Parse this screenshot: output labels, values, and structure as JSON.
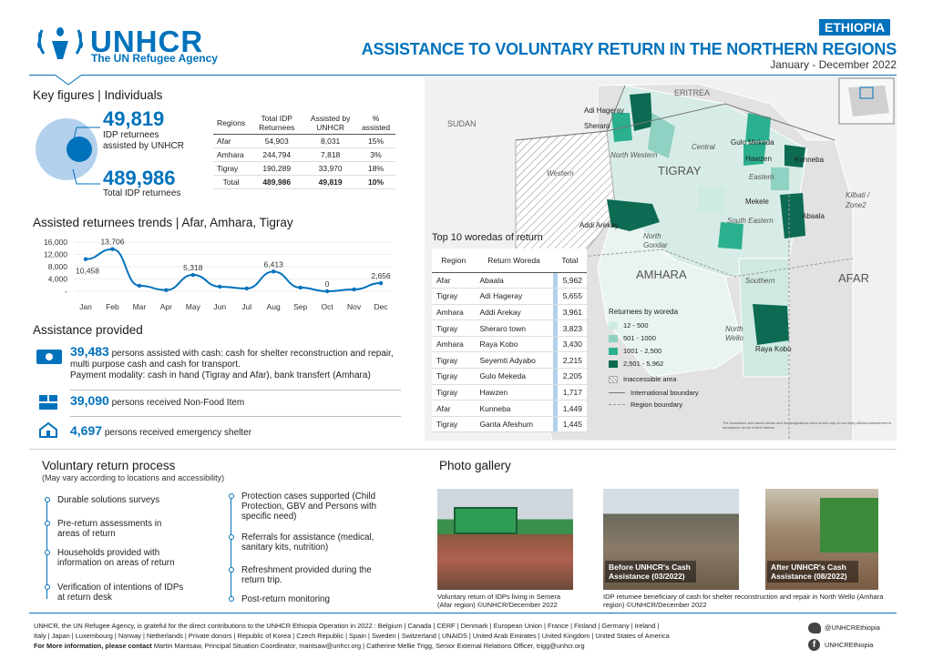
{
  "header": {
    "org_name": "UNHCR",
    "org_sub": "The UN Refugee Agency",
    "country": "ETHIOPIA",
    "title": "ASSISTANCE TO VOLUNTARY RETURN IN THE NORTHERN REGIONS",
    "period": "January - December 2022"
  },
  "key_figures": {
    "title": "Key figures | Individuals",
    "assisted_value": "49,819",
    "assisted_label": "IDP returnees assisted by UNHCR",
    "total_value": "489,986",
    "total_label": "Total IDP returnees",
    "assisted_share": 0.102
  },
  "regions_table": {
    "headers": [
      "Regions",
      "Total IDP Returnees",
      "Assisted by UNHCR",
      "% assisted"
    ],
    "rows": [
      [
        "Afar",
        "54,903",
        "8,031",
        "15%"
      ],
      [
        "Amhara",
        "244,794",
        "7,818",
        "3%"
      ],
      [
        "Tigray",
        "190,289",
        "33,970",
        "18%"
      ]
    ],
    "total": [
      "Total",
      "489,986",
      "49,819",
      "10%"
    ]
  },
  "trend": {
    "title": "Assisted returnees trends | Afar, Amhara, Tigray",
    "y_ticks": [
      "16,000",
      "12,000",
      "8,000",
      "4,000",
      "-"
    ],
    "chart_data": {
      "type": "line",
      "x": [
        "Jan",
        "Feb",
        "Mar",
        "Apr",
        "May",
        "Jun",
        "Jul",
        "Aug",
        "Sep",
        "Oct",
        "Nov",
        "Dec"
      ],
      "values": [
        10458,
        13706,
        1800,
        400,
        5318,
        1500,
        900,
        6413,
        1200,
        0,
        600,
        2656
      ],
      "labels": {
        "0": "10,458",
        "1": "13,706",
        "4": "5,318",
        "7": "6,413",
        "9": "0",
        "11": "2,656"
      },
      "ylim": [
        0,
        16000
      ]
    }
  },
  "assistance": {
    "title": "Assistance provided",
    "items": [
      {
        "value": "39,483",
        "text": "persons assisted with cash: cash for shelter reconstruction and repair, multi purpose cash and cash for transport.",
        "text2": "Payment modality: cash in hand (Tigray and Afar), bank transfert (Amhara)",
        "icon": "cash-icon"
      },
      {
        "value": "39,090",
        "text": "persons received Non-Food Item",
        "icon": "nfi-icon"
      },
      {
        "value": "4,697",
        "text": "persons received emergency shelter",
        "icon": "shelter-icon"
      }
    ]
  },
  "top10": {
    "title": "Top 10 woredas of return",
    "headers": [
      "Region",
      "Return Woreda",
      "Total"
    ],
    "rows": [
      [
        "Afar",
        "Abaala",
        "5,962"
      ],
      [
        "Tigray",
        "Adi Hageray",
        "5,655"
      ],
      [
        "Amhara",
        "Addi Arekay",
        "3,961"
      ],
      [
        "Tigray",
        "Sheraro town",
        "3,823"
      ],
      [
        "Amhara",
        "Raya Kobo",
        "3,430"
      ],
      [
        "Tigray",
        "Seyemti Adyabo",
        "2,215"
      ],
      [
        "Tigray",
        "Gulo Mekeda",
        "2,205"
      ],
      [
        "Tigray",
        "Hawzen",
        "1,717"
      ],
      [
        "Afar",
        "Kunneba",
        "1,449"
      ],
      [
        "Tigray",
        "Ganta Afeshum",
        "1,445"
      ]
    ]
  },
  "map": {
    "labels": {
      "eritrea": "ERITREA",
      "sudan": "SUDAN",
      "tigray": "TIGRAY",
      "amhara": "AMHARA",
      "afar": "AFAR",
      "western": "Western",
      "north_western": "North Western",
      "central": "Central",
      "eastern": "Eastern",
      "south_eastern": "South Eastern",
      "southern": "Southern",
      "north_gondar": "North Gondar",
      "north_wello": "North Wello",
      "kilbati": "Kilbati / Zone2",
      "adi_hageray": "Adi Hageray",
      "sheraro": "Sheraro",
      "gulo_mekeda": "Gulo Mekeda",
      "hawzen": "Hawzen",
      "kunneba": "Kunneba",
      "mekele": "Mekele",
      "abaala": "Abaala",
      "addi_arekay": "Addi Arekay",
      "raya_kobo": "Raya Kobo"
    },
    "legend_title": "Returnees by woreda",
    "legend": [
      {
        "label": "12 - 500",
        "color": "#cdeae3"
      },
      {
        "label": "501 - 1000",
        "color": "#8fd1c2"
      },
      {
        "label": "1001 - 2,500",
        "color": "#2bb08f"
      },
      {
        "label": "2,501 - 5,962",
        "color": "#0c6b52"
      }
    ],
    "inaccessible": "Inaccessible area",
    "intl_boundary": "International boundary",
    "region_boundary": "Region boundary",
    "disclaimer": "The boundaries and names shown and the designations used on this map do not imply official endorsement or acceptance by the United Nations."
  },
  "process": {
    "title": "Voluntary return process",
    "subtitle": "(May vary according to locations and accessibility)",
    "left": [
      "Durable solutions surveys",
      "Pre-return assessments in areas of return",
      "Households provided with information on areas of return",
      "Verification of intentions of IDPs at return desk"
    ],
    "right": [
      "Protection cases supported (Child Protection, GBV and Persons with specific need)",
      "Referrals for assistance (medical, sanitary kits, nutrition)",
      "Refreshment provided during the return trip.",
      "Post-return monitoring"
    ]
  },
  "gallery": {
    "title": "Photo gallery",
    "cap1": "Voluntary return of IDPs living in Semera (Afar region) ©UNHCR/December 2022",
    "cap2": "IDP returnee beneficiary of cash for shelter reconstruction and repair in North Wello (Amhara region) ©UNHCR/December 2022",
    "before": "Before UNHCR's Cash Assistance (03/2022)",
    "after": "After UNHCR's Cash Assistance (08/2022)"
  },
  "footer": {
    "line1": "UNHCR, the UN Refugee Agency, is grateful for the direct contributions to the UNHCR Ethiopia Operation in 2022 : Belgium | Canada | CERF | Denmark | European Union | France | Finland | Germany | Ireland |",
    "line2": "Italy | Japan | Luxembourg | Norway | Netherlands | Private donors | Republic of Korea | Czech Republic | Spain | Sweden | Switzerland | UNAIDS | United Arab Emirates | United Kingdom | United States of America",
    "line3_bold": "For More information, please contact",
    "line3": "Martin Mantsaw, Principal Situation Coordinator, mantsaw@unhcr.org | Catherine Mellie Trigg, Senior External Relations Officer, trigg@unhcr.org",
    "twitter": "@UNHCREthiopia",
    "facebook": "UNHCREthiopia"
  },
  "colors": {
    "brand": "#0072bc",
    "dark_green": "#0c6b52"
  }
}
